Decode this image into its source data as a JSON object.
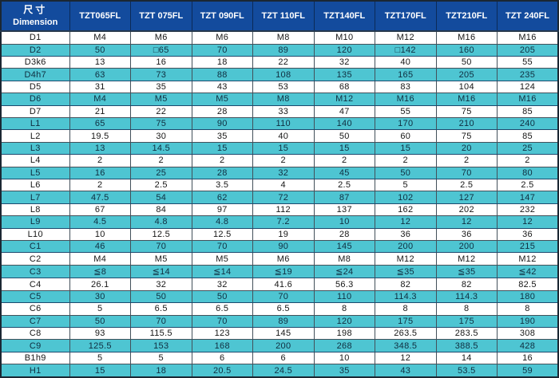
{
  "colors": {
    "header_bg": "#134b9d",
    "stripe_bg": "#4ec5d2",
    "border_dark": "#1b2733",
    "stripe_border": "#1c4a6e",
    "header_text": "#ffffff",
    "body_text": "#161616",
    "stripe_text": "#0f2e40"
  },
  "header": {
    "corner_zh": "尺寸",
    "corner_en": "Dimension"
  },
  "chart_data": {
    "type": "table",
    "title": "尺寸 Dimension",
    "columns": [
      "TZT065FL",
      "TZT 075FL",
      "TZT 090FL",
      "TZT 110FL",
      "TZT140FL",
      "TZT170FL",
      "TZT210FL",
      "TZT 240FL"
    ],
    "rows": [
      {
        "label": "D1",
        "values": [
          "M4",
          "M6",
          "M6",
          "M8",
          "M10",
          "M12",
          "M16",
          "M16"
        ]
      },
      {
        "label": "D2",
        "values": [
          "50",
          "□65",
          "70",
          "89",
          "120",
          "□142",
          "160",
          "205"
        ]
      },
      {
        "label": "D3k6",
        "values": [
          "13",
          "16",
          "18",
          "22",
          "32",
          "40",
          "50",
          "55"
        ]
      },
      {
        "label": "D4h7",
        "values": [
          "63",
          "73",
          "88",
          "108",
          "135",
          "165",
          "205",
          "235"
        ]
      },
      {
        "label": "D5",
        "values": [
          "31",
          "35",
          "43",
          "53",
          "68",
          "83",
          "104",
          "124"
        ]
      },
      {
        "label": "D6",
        "values": [
          "M4",
          "M5",
          "M5",
          "M8",
          "M12",
          "M16",
          "M16",
          "M16"
        ]
      },
      {
        "label": "D7",
        "values": [
          "21",
          "22",
          "28",
          "33",
          "47",
          "55",
          "75",
          "85"
        ]
      },
      {
        "label": "L1",
        "values": [
          "65",
          "75",
          "90",
          "110",
          "140",
          "170",
          "210",
          "240"
        ]
      },
      {
        "label": "L2",
        "values": [
          "19.5",
          "30",
          "35",
          "40",
          "50",
          "60",
          "75",
          "85"
        ]
      },
      {
        "label": "L3",
        "values": [
          "13",
          "14.5",
          "15",
          "15",
          "15",
          "15",
          "20",
          "25"
        ]
      },
      {
        "label": "L4",
        "values": [
          "2",
          "2",
          "2",
          "2",
          "2",
          "2",
          "2",
          "2"
        ]
      },
      {
        "label": "L5",
        "values": [
          "16",
          "25",
          "28",
          "32",
          "45",
          "50",
          "70",
          "80"
        ]
      },
      {
        "label": "L6",
        "values": [
          "2",
          "2.5",
          "3.5",
          "4",
          "2.5",
          "5",
          "2.5",
          "2.5"
        ]
      },
      {
        "label": "L7",
        "values": [
          "47.5",
          "54",
          "62",
          "72",
          "87",
          "102",
          "127",
          "147"
        ]
      },
      {
        "label": "L8",
        "values": [
          "67",
          "84",
          "97",
          "112",
          "137",
          "162",
          "202",
          "232"
        ]
      },
      {
        "label": "L9",
        "values": [
          "4.5",
          "4.8",
          "4.8",
          "7.2",
          "10",
          "12",
          "12",
          "12"
        ]
      },
      {
        "label": "L10",
        "values": [
          "10",
          "12.5",
          "12.5",
          "19",
          "28",
          "36",
          "36",
          "36"
        ]
      },
      {
        "label": "C1",
        "values": [
          "46",
          "70",
          "70",
          "90",
          "145",
          "200",
          "200",
          "215"
        ]
      },
      {
        "label": "C2",
        "values": [
          "M4",
          "M5",
          "M5",
          "M6",
          "M8",
          "M12",
          "M12",
          "M12"
        ]
      },
      {
        "label": "C3",
        "values": [
          "≦8",
          "≦14",
          "≦14",
          "≦19",
          "≦24",
          "≦35",
          "≦35",
          "≦42"
        ]
      },
      {
        "label": "C4",
        "values": [
          "26.1",
          "32",
          "32",
          "41.6",
          "56.3",
          "82",
          "82",
          "82.5"
        ]
      },
      {
        "label": "C5",
        "values": [
          "30",
          "50",
          "50",
          "70",
          "110",
          "114.3",
          "114.3",
          "180"
        ]
      },
      {
        "label": "C6",
        "values": [
          "5",
          "6.5",
          "6.5",
          "6.5",
          "8",
          "8",
          "8",
          "8"
        ]
      },
      {
        "label": "C7",
        "values": [
          "50",
          "70",
          "70",
          "89",
          "120",
          "175",
          "175",
          "190"
        ]
      },
      {
        "label": "C8",
        "values": [
          "93",
          "115.5",
          "123",
          "145",
          "198",
          "263.5",
          "283.5",
          "308"
        ]
      },
      {
        "label": "C9",
        "values": [
          "125.5",
          "153",
          "168",
          "200",
          "268",
          "348.5",
          "388.5",
          "428"
        ]
      },
      {
        "label": "B1h9",
        "values": [
          "5",
          "5",
          "6",
          "6",
          "10",
          "12",
          "14",
          "16"
        ]
      },
      {
        "label": "H1",
        "values": [
          "15",
          "18",
          "20.5",
          "24.5",
          "35",
          "43",
          "53.5",
          "59"
        ]
      }
    ]
  }
}
